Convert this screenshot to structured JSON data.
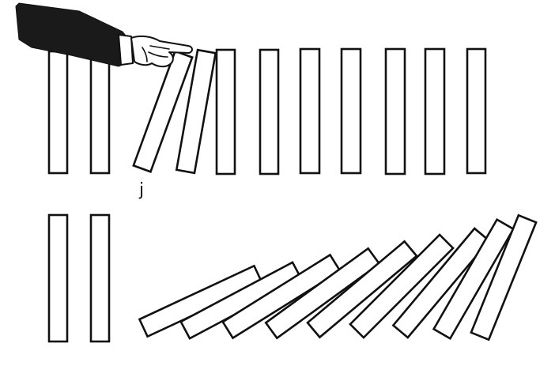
{
  "scene": {
    "caption": "j",
    "colors": {
      "background": "#ffffff",
      "ink": "#111111",
      "sleeve": "#1a1a1a"
    },
    "top_row": {
      "standing_count": 9,
      "tilted_count": 2
    },
    "bottom_row": {
      "standing_count": 2,
      "fallen_count": 9
    }
  }
}
